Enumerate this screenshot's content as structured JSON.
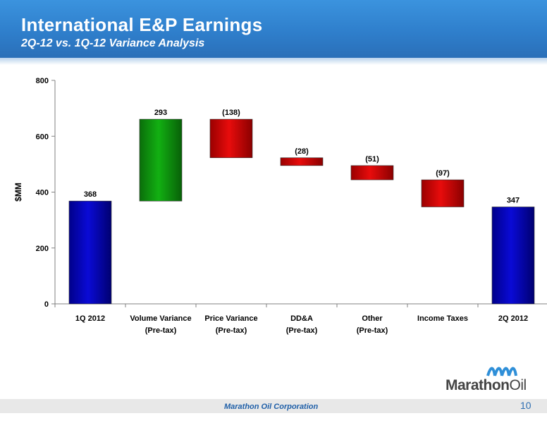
{
  "header": {
    "title": "International E&P Earnings",
    "subtitle": "2Q-12 vs. 1Q-12 Variance Analysis"
  },
  "footer": {
    "company": "Marathon Oil Corporation",
    "page_number": "10"
  },
  "logo": {
    "text_a": "Marathon",
    "text_b": "Oil"
  },
  "colors": {
    "total": "#0a0ad6",
    "increase": "#12b012",
    "decrease": "#e80c0c",
    "brand_blue": "#2f7fcc"
  },
  "chart_data": {
    "type": "bar",
    "subtype": "waterfall",
    "ylabel": "$MM",
    "ylim": [
      0,
      800
    ],
    "yticks": [
      0,
      200,
      400,
      600,
      800
    ],
    "grid": false,
    "categories": [
      [
        "1Q 2012"
      ],
      [
        "Volume Variance",
        "(Pre-tax)"
      ],
      [
        "Price Variance",
        "(Pre-tax)"
      ],
      [
        "DD&A",
        "(Pre-tax)"
      ],
      [
        "Other",
        "(Pre-tax)"
      ],
      [
        "Income Taxes"
      ],
      [
        "2Q 2012"
      ]
    ],
    "bars": [
      {
        "kind": "total",
        "base": 0,
        "top": 368,
        "label": "368"
      },
      {
        "kind": "increase",
        "base": 368,
        "top": 661,
        "label": "293"
      },
      {
        "kind": "decrease",
        "base": 523,
        "top": 661,
        "label": "(138)"
      },
      {
        "kind": "decrease",
        "base": 495,
        "top": 523,
        "label": "(28)"
      },
      {
        "kind": "decrease",
        "base": 444,
        "top": 495,
        "label": "(51)"
      },
      {
        "kind": "decrease",
        "base": 347,
        "top": 444,
        "label": "(97)"
      },
      {
        "kind": "total",
        "base": 0,
        "top": 347,
        "label": "347"
      }
    ]
  }
}
